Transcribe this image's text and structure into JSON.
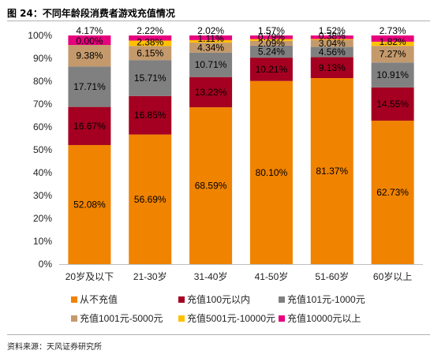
{
  "figure": {
    "title": "图 24：不同年龄段消费者游戏充值情况",
    "source": "资料来源：天风证券研究所"
  },
  "chart_data": {
    "type": "bar",
    "stacked": true,
    "percent_stacked": true,
    "categories": [
      "20岁及以下",
      "21-30岁",
      "31-40岁",
      "41-50岁",
      "51-60岁",
      "60岁以上"
    ],
    "series": [
      {
        "name": "从不充值",
        "color": "#F08300",
        "values": [
          52.08,
          56.69,
          68.59,
          80.1,
          81.37,
          62.73
        ]
      },
      {
        "name": "充值100元以内",
        "color": "#A50021",
        "values": [
          16.67,
          16.85,
          13.23,
          10.21,
          9.13,
          14.55
        ]
      },
      {
        "name": "充值101元-1000元",
        "color": "#808080",
        "values": [
          17.71,
          15.71,
          10.71,
          5.24,
          4.56,
          10.91
        ]
      },
      {
        "name": "充值1001元-5000元",
        "color": "#C49A6C",
        "values": [
          9.38,
          6.15,
          4.34,
          2.09,
          3.04,
          7.27
        ]
      },
      {
        "name": "充值5001元-10000元",
        "color": "#FFC000",
        "values": [
          0.0,
          2.38,
          1.11,
          0.79,
          0.38,
          1.82
        ]
      },
      {
        "name": "充值10000元以上",
        "color": "#E6007E",
        "values": [
          4.17,
          2.22,
          2.02,
          1.57,
          1.52,
          2.73
        ]
      }
    ],
    "data_labels": [
      [
        "52.08%",
        "16.67%",
        "17.71%",
        "9.38%",
        "0.00%",
        "4.17%"
      ],
      [
        "56.69%",
        "16.85%",
        "15.71%",
        "6.15%",
        "2.38%",
        "2.22%"
      ],
      [
        "68.59%",
        "13.23%",
        "10.71%",
        "4.34%",
        "1.11%",
        "2.02%"
      ],
      [
        "80.10%",
        "10.21%",
        "5.24%",
        "2.09%",
        "0.79%",
        "1.57%"
      ],
      [
        "81.37%",
        "9.13%",
        "4.56%",
        "3.04%",
        "0.38%",
        "1.52%"
      ],
      [
        "62.73%",
        "14.55%",
        "10.91%",
        "7.27%",
        "1.82%",
        "2.73%"
      ]
    ],
    "y_ticks": [
      "0%",
      "10%",
      "20%",
      "30%",
      "40%",
      "50%",
      "60%",
      "70%",
      "80%",
      "90%",
      "100%"
    ],
    "ylim": [
      0,
      100
    ],
    "grid": false,
    "legend": "bottom"
  }
}
